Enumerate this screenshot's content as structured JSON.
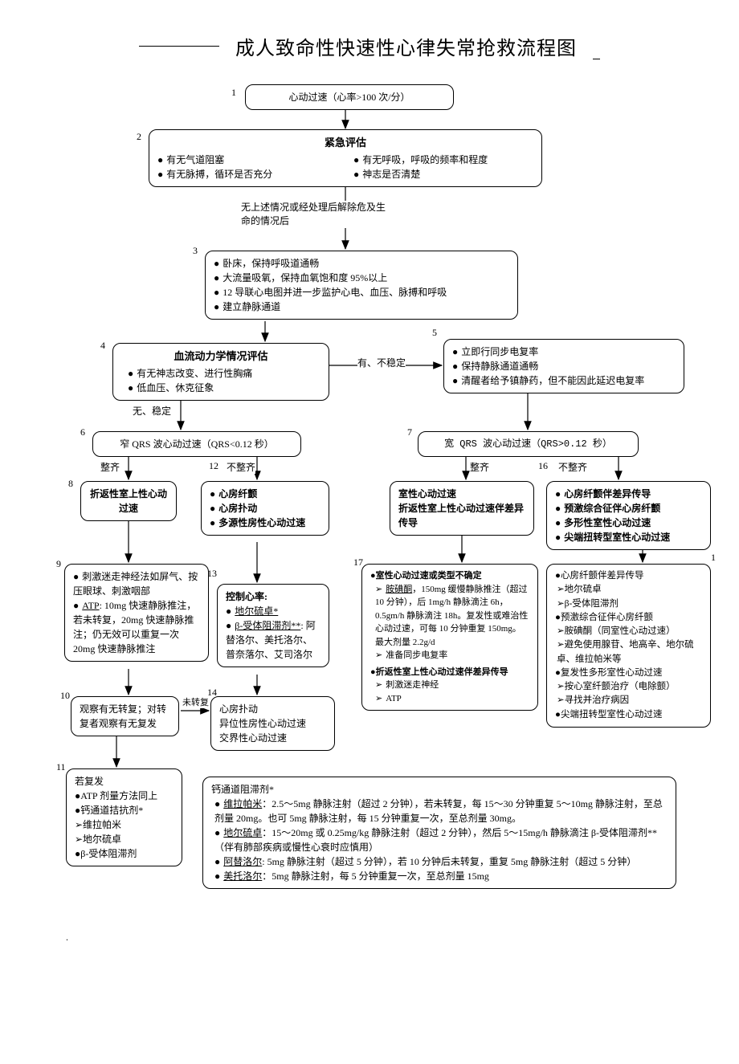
{
  "title": "成人致命性快速性心律失常抢救流程图",
  "nodes": {
    "n1": {
      "num": "1",
      "text": "心动过速（心率>100 次/分）"
    },
    "n2": {
      "num": "2",
      "title": "紧急评估",
      "col1": [
        "有无气道阻塞",
        "有无脉搏，循环是否充分"
      ],
      "col2": [
        "有无呼吸，呼吸的频率和程度",
        "神志是否清楚"
      ]
    },
    "edge_2_3": "无上述情况或经处理后解除危及生命的情况后",
    "n3": {
      "num": "3",
      "items": [
        "卧床，保持呼吸道通畅",
        "大流量吸氧，保持血氧饱和度 95%以上",
        "12 导联心电图并进一步监护心电、血压、脉搏和呼吸",
        "建立静脉通道"
      ]
    },
    "n4": {
      "num": "4",
      "title": "血流动力学情况评估",
      "items": [
        "有无神志改变、进行性胸痛",
        "低血压、休克征象"
      ]
    },
    "edge_4_5": "有、不稳定",
    "n5": {
      "num": "5",
      "items": [
        "立即行同步电复率",
        "保持静脉通道通畅",
        "清醒者给予镇静药，但不能因此延迟电复率"
      ]
    },
    "edge_4_6": "无、稳定",
    "n6": {
      "num": "6",
      "text": "窄 QRS 波心动过速（QRS<0.12 秒）"
    },
    "n7": {
      "num": "7",
      "text": "宽 QRS 波心动过速（QRS>0.12 秒）"
    },
    "lbl_regular": "整齐",
    "lbl_irregular": "不整齐",
    "n8": {
      "num": "8",
      "title": "折返性室上性心动过速"
    },
    "n12": {
      "num": "12",
      "items": [
        "心房纤颤",
        "心房扑动",
        "多源性房性心动过速"
      ]
    },
    "n7r": {
      "title_lines": [
        "室性心动过速",
        "折返性室上性心动过速伴差异传导"
      ]
    },
    "n16": {
      "num": "16",
      "items": [
        "心房纤颤伴差异传导",
        "预激综合征伴心房纤颤",
        "多形性室性心动过速",
        "尖端扭转型室性心动过速"
      ]
    },
    "n9": {
      "num": "9",
      "items_html": [
        "刺激迷走神经法如屏气、按压眼球、刺激咽部",
        "<span class='u'>ATP</span>: 10mg 快速静脉推注，若未转复，20mg 快速静脉推注；仍无效可以重复一次 20mg 快速静脉推注"
      ]
    },
    "n13": {
      "num": "13",
      "title": "控制心率:",
      "items_html": [
        "<span class='u'>地尔硫卓*</span>",
        "<span class='u'>β-受体阻滞剂**</span>: 阿替洛尔、美托洛尔、普奈落尔、艾司洛尔"
      ]
    },
    "n17": {
      "num": "17",
      "sec1_title": "室性心动过速或类型不确定",
      "sec1_items": [
        "<span class='u'>胺碘酮</span>，150mg 缓慢静脉推注（超过 10 分钟），后 1mg/h 静脉滴注 6h，0.5gm/h 静脉滴注 18h。复发性或难治性心动过速，可每 10 分钟重复 150mg。最大剂量 2.2g/d",
        "准备同步电复率"
      ],
      "sec2_title": "折返性室上性心动过速伴差异传导",
      "sec2_items": [
        "刺激迷走神经",
        "ATP"
      ]
    },
    "n18": {
      "num": "1",
      "groups": [
        {
          "bullet": "心房纤颤伴差异传导",
          "arrows": [
            "地尔硫卓",
            "β-受体阻滞剂"
          ]
        },
        {
          "bullet": "预激综合征伴心房纤颤",
          "arrows": [
            "胺碘酮（同室性心动过速）",
            "避免使用腺苷、地高辛、地尔硫卓、维拉帕米等"
          ]
        },
        {
          "bullet": "复发性多形室性心动过速",
          "arrows": [
            "按心室纤颤治疗（电除颤）",
            "寻找并治疗病因"
          ]
        },
        {
          "bullet": "尖端扭转型室性心动过速",
          "arrows": []
        }
      ]
    },
    "n10": {
      "num": "10",
      "text": "观察有无转复；对转复者观察有无复发"
    },
    "edge_10_13": "未转复",
    "n14": {
      "num": "14",
      "lines": [
        "心房扑动",
        "异位性房性心动过速",
        "交界性心动过速"
      ]
    },
    "n11": {
      "num": "11",
      "title": "若复发",
      "items_html": [
        "●ATP 剂量方法同上",
        "●钙通道拮抗剂*",
        "➢维拉帕米",
        "➢地尔硫卓",
        "●β-受体阻滞剂"
      ]
    },
    "footnote": {
      "title": "钙通道阻滞剂*",
      "items_html": [
        "<span class='u'>维拉帕米</span>：2.5～5mg 静脉注射（超过 2 分钟），若未转复，每 15～30 分钟重复 5～10mg 静脉注射，至总剂量 20mg。也可 5mg 静脉注射，每 15 分钟重复一次，至总剂量 30mg。",
        "<span class='u'>地尔硫卓</span>：15～20mg 或 0.25mg/kg 静脉注射（超过 2 分钟），然后 5～15mg/h 静脉滴注 β-受体阻滞剂**（伴有肺部疾病或慢性心衰时应慎用）",
        "<span class='u'>阿替洛尔</span>: 5mg 静脉注射（超过 5 分钟），若 10 分钟后未转复，重复 5mg 静脉注射（超过 5 分钟）",
        "<span class='u'>美托洛尔</span>：5mg 静脉注射，每 5 分钟重复一次，至总剂量 15mg"
      ]
    }
  },
  "layout": {
    "box_border_radius": 10,
    "arrow_color": "#000000",
    "arrow_width": 1.2
  }
}
